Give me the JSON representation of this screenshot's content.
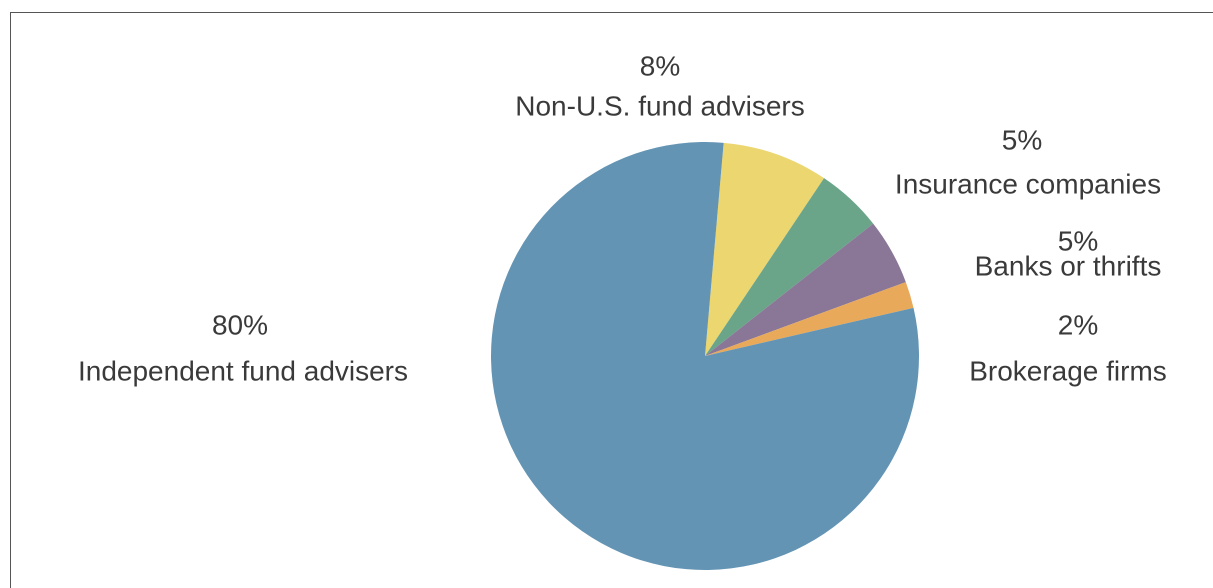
{
  "chart_data": {
    "type": "pie",
    "categories": [
      "Non-U.S. fund advisers",
      "Insurance companies",
      "Banks or thrifts",
      "Brokerage firms",
      "Independent fund advisers"
    ],
    "values": [
      8,
      5,
      5,
      2,
      80
    ],
    "value_labels": [
      "8%",
      "5%",
      "5%",
      "2%",
      "80%"
    ],
    "colors": [
      "#ecd670",
      "#6aa58a",
      "#8a7696",
      "#e8a95a",
      "#6394b4"
    ]
  }
}
